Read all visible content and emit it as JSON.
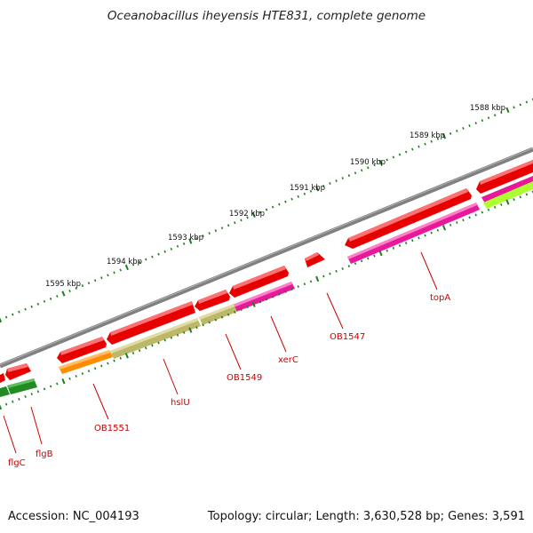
{
  "title": "Oceanobacillus iheyensis HTE831, complete genome",
  "footer": {
    "accession": "Accession: NC_004193",
    "topology": "Topology: circular; Length: 3,630,528 bp; Genes: 3,591"
  },
  "scale_labels": [
    "1588 kbp",
    "1589 kbp",
    "1590 kbp",
    "1591 kbp",
    "1592 kbp",
    "1593 kbp",
    "1594 kbp",
    "1595 kbp"
  ],
  "gene_labels": [
    "topA",
    "OB1547",
    "xerC",
    "OB1549",
    "hslU",
    "OB1551",
    "flgB",
    "flgC"
  ],
  "colors": {
    "backbone": "#808080",
    "forward_gene": "#e60000",
    "cog_magenta": "#e8189a",
    "cog_olive": "#bdb76b",
    "cog_orange": "#ff8c00",
    "cog_green": "#228b22",
    "cog_lime": "#adff2f",
    "tick": "#1e7d1e",
    "label": "#cc0000"
  }
}
